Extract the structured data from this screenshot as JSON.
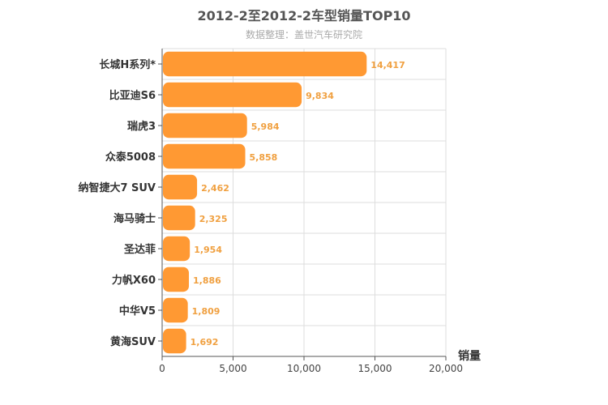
{
  "chart_data": {
    "type": "bar",
    "orientation": "horizontal",
    "title": "2012-2至2012-2车型销量TOP10",
    "subtitle": "数据整理：盖世汽车研究院",
    "categories": [
      "长城H系列*",
      "比亚迪S6",
      "瑞虎3",
      "众泰5008",
      "纳智捷大7 SUV",
      "海马骑士",
      "圣达菲",
      "力帆X60",
      "中华V5",
      "黄海SUV"
    ],
    "values": [
      14417,
      9834,
      5984,
      5858,
      2462,
      2325,
      1954,
      1886,
      1809,
      1692
    ],
    "value_labels": [
      "14,417",
      "9,834",
      "5,984",
      "5,858",
      "2,462",
      "2,325",
      "1,954",
      "1,886",
      "1,809",
      "1,692"
    ],
    "xlabel": "销量",
    "xlim": [
      0,
      20000
    ],
    "xticks": [
      "0",
      "5,000",
      "10,000",
      "15,000",
      "20,000"
    ],
    "grid": true,
    "colors": {
      "bar": "#ff9933",
      "label": "#f0a040",
      "grid": "#dddddd",
      "axis": "#555555"
    }
  }
}
